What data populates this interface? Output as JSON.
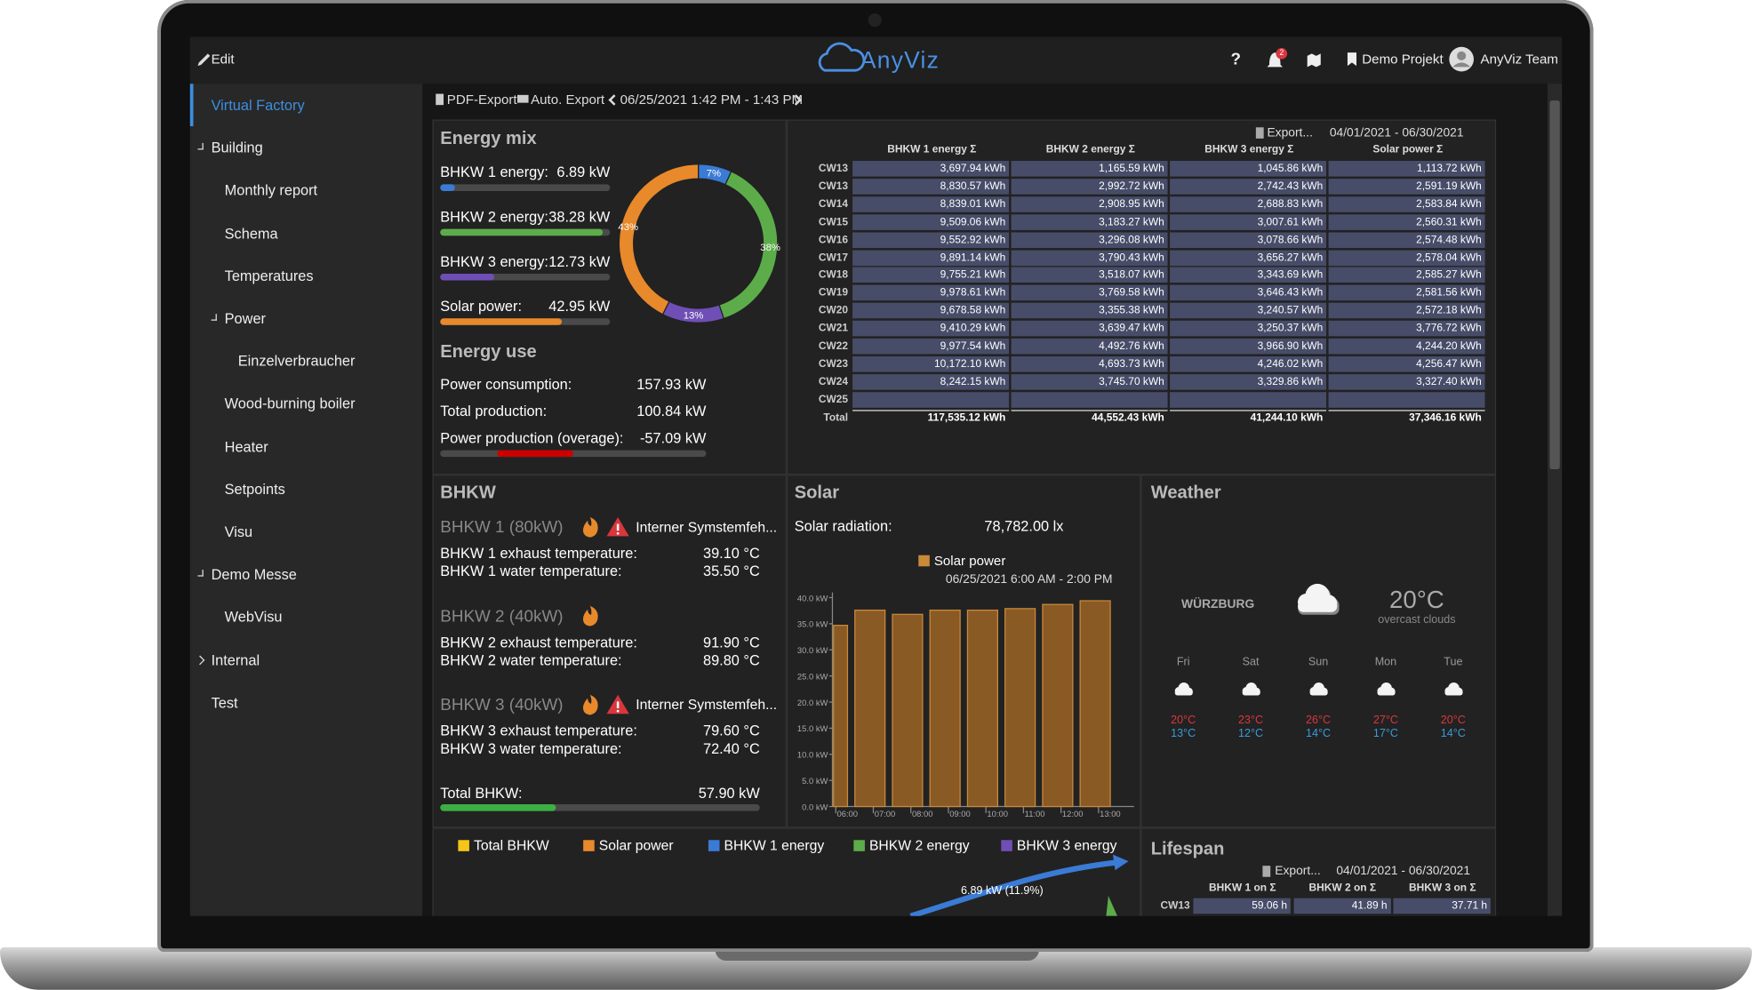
{
  "header": {
    "edit": "Edit",
    "logo": "AnyViz",
    "help": "?",
    "notification_count": "2",
    "project": "Demo Projekt",
    "user": "AnyViz Team"
  },
  "sidebar": {
    "items": [
      "Virtual Factory",
      "Building",
      "Monthly report",
      "Schema",
      "Temperatures",
      "Power",
      "Einzelverbraucher",
      "Wood-burning boiler",
      "Heater",
      "Setpoints",
      "Visu",
      "Demo Messe",
      "WebVisu",
      "Internal",
      "Test"
    ]
  },
  "toolbar": {
    "pdf_export": "PDF-Export",
    "auto_export": "Auto. Export",
    "time_range": "06/25/2021 1:42 PM - 1:43 PM"
  },
  "energy_mix": {
    "title": "Energy mix",
    "items": [
      {
        "label": "BHKW 1 energy:",
        "value": 6.89,
        "value_label": "6.89 kW",
        "range": [
          0,
          80
        ],
        "color": "#3a7bd5",
        "share_label": "7%"
      },
      {
        "label": "BHKW 2 energy:",
        "value": 38.28,
        "value_label": "38.28 kW",
        "range": [
          0,
          40
        ],
        "color": "#5cad4a",
        "share_label": "38%"
      },
      {
        "label": "BHKW 3 energy:",
        "value": 12.73,
        "value_label": "12.73 kW",
        "range": [
          0,
          40
        ],
        "color": "#6f4fb5",
        "share_label": "13%"
      },
      {
        "label": "Solar power:",
        "value": 42.95,
        "value_label": "42.95 kW",
        "range": [
          0,
          60
        ],
        "color": "#e8892b",
        "share_label": "43%"
      }
    ]
  },
  "energy_use": {
    "title": "Energy use",
    "rows": [
      {
        "label": "Power consumption:",
        "value": "157.93 kW"
      },
      {
        "label": "Total production:",
        "value": "100.84 kW"
      }
    ],
    "overage": {
      "label": "Power production (overage):",
      "value": -57.09,
      "value_label": "-57.09 kW",
      "range": [
        -100,
        100
      ],
      "color": "#cc0000"
    }
  },
  "energy_table": {
    "export": "Export...",
    "period": "04/01/2021 - 06/30/2021",
    "columns": [
      "BHKW 1 energy Σ",
      "BHKW 2 energy Σ",
      "BHKW 3 energy Σ",
      "Solar power Σ"
    ],
    "rows": [
      [
        "CW13",
        "3,697.94 kWh",
        "1,165.59 kWh",
        "1,045.86 kWh",
        "1,113.72 kWh"
      ],
      [
        "CW13",
        "8,830.57 kWh",
        "2,992.72 kWh",
        "2,742.43 kWh",
        "2,591.19 kWh"
      ],
      [
        "CW14",
        "8,839.01 kWh",
        "2,908.95 kWh",
        "2,688.83 kWh",
        "2,583.84 kWh"
      ],
      [
        "CW15",
        "9,509.06 kWh",
        "3,183.27 kWh",
        "3,007.61 kWh",
        "2,560.31 kWh"
      ],
      [
        "CW16",
        "9,552.92 kWh",
        "3,296.08 kWh",
        "3,078.66 kWh",
        "2,574.48 kWh"
      ],
      [
        "CW17",
        "9,891.14 kWh",
        "3,790.43 kWh",
        "3,656.27 kWh",
        "2,578.04 kWh"
      ],
      [
        "CW18",
        "9,755.21 kWh",
        "3,518.07 kWh",
        "3,343.69 kWh",
        "2,585.27 kWh"
      ],
      [
        "CW19",
        "9,978.61 kWh",
        "3,769.58 kWh",
        "3,646.43 kWh",
        "2,581.56 kWh"
      ],
      [
        "CW20",
        "9,678.58 kWh",
        "3,355.38 kWh",
        "3,240.57 kWh",
        "2,572.18 kWh"
      ],
      [
        "CW21",
        "9,410.29 kWh",
        "3,639.47 kWh",
        "3,250.37 kWh",
        "3,776.72 kWh"
      ],
      [
        "CW22",
        "9,977.54 kWh",
        "4,492.76 kWh",
        "3,966.90 kWh",
        "4,244.20 kWh"
      ],
      [
        "CW23",
        "10,172.10 kWh",
        "4,693.73 kWh",
        "4,246.02 kWh",
        "4,256.47 kWh"
      ],
      [
        "CW24",
        "8,242.15 kWh",
        "3,745.70 kWh",
        "3,329.86 kWh",
        "3,327.40 kWh"
      ],
      [
        "CW25",
        null,
        null,
        null,
        null
      ]
    ],
    "total": [
      "Total",
      "117,535.12 kWh",
      "44,552.43 kWh",
      "41,244.10 kWh",
      "37,346.16 kWh"
    ]
  },
  "bhkw": {
    "title": "BHKW",
    "units": [
      {
        "name": "BHKW 1 (80kW)",
        "status": "Interner Symstemfeh...",
        "readings": [
          {
            "label": "BHKW 1 exhaust temperature:",
            "value": "39.10 °C"
          },
          {
            "label": "BHKW 1 water temperature:",
            "value": "35.50 °C"
          }
        ]
      },
      {
        "name": "BHKW 2 (40kW)",
        "readings": [
          {
            "label": "BHKW 2 exhaust temperature:",
            "value": "91.90 °C"
          },
          {
            "label": "BHKW 2 water temperature:",
            "value": "89.80 °C"
          }
        ]
      },
      {
        "name": "BHKW 3 (40kW)",
        "status": "Interner Symstemfeh...",
        "readings": [
          {
            "label": "BHKW 3 exhaust temperature:",
            "value": "79.60 °C"
          },
          {
            "label": "BHKW 3 water temperature:",
            "value": "72.40 °C"
          }
        ]
      }
    ],
    "total": {
      "label": "Total BHKW:",
      "value": 57.9,
      "value_label": "57.90 kW",
      "range": [
        0,
        160
      ],
      "color": "#3cb043"
    }
  },
  "solar": {
    "title": "Solar",
    "radiation": {
      "label": "Solar radiation:",
      "value": "78,782.00 lx"
    },
    "chart_data": {
      "type": "bar",
      "subtitle": "06/25/2021 6:00 AM - 2:00 PM",
      "categories": [
        "06:00",
        "07:00",
        "08:00",
        "09:00",
        "10:00",
        "11:00",
        "12:00",
        "13:00"
      ],
      "series": [
        {
          "name": "Solar power",
          "color": "#c98a3a",
          "values": [
            34.7,
            37.6,
            36.8,
            37.6,
            37.6,
            37.9,
            38.7,
            39.4
          ]
        }
      ],
      "ylim": [
        0,
        41
      ],
      "yticks": [
        {
          "value": 0,
          "label": "0.0 kW"
        },
        {
          "value": 5,
          "label": "5.0 kW"
        },
        {
          "value": 10,
          "label": "10.0 kW"
        },
        {
          "value": 15,
          "label": "15.0 kW"
        },
        {
          "value": 20,
          "label": "20.0 kW"
        },
        {
          "value": 25,
          "label": "25.0 kW"
        },
        {
          "value": 30,
          "label": "30.0 kW"
        },
        {
          "value": 35,
          "label": "35.0 kW"
        },
        {
          "value": 40,
          "label": "40.0 kW"
        }
      ]
    }
  },
  "weather": {
    "title": "Weather",
    "city": "WÜRZBURG",
    "temperature": "20°C",
    "condition": "overcast clouds",
    "forecast": [
      {
        "day": "Fri",
        "high": "20°C",
        "low": "13°C"
      },
      {
        "day": "Sat",
        "high": "23°C",
        "low": "12°C"
      },
      {
        "day": "Sun",
        "high": "26°C",
        "low": "14°C"
      },
      {
        "day": "Mon",
        "high": "27°C",
        "low": "17°C"
      },
      {
        "day": "Tue",
        "high": "20°C",
        "low": "14°C"
      }
    ]
  },
  "flow": {
    "legend": [
      {
        "name": "Total BHKW",
        "color": "#f5c518"
      },
      {
        "name": "Solar power",
        "color": "#e8892b"
      },
      {
        "name": "BHKW 1 energy",
        "color": "#3a7bd5"
      },
      {
        "name": "BHKW 2 energy",
        "color": "#5cad4a"
      },
      {
        "name": "BHKW 3 energy",
        "color": "#6f4fb5"
      }
    ],
    "link_label": "6.89 kW (11.9%)"
  },
  "lifespan": {
    "title": "Lifespan",
    "export": "Export...",
    "period": "04/01/2021 - 06/30/2021",
    "columns": [
      "BHKW 1 on Σ",
      "BHKW 2 on Σ",
      "BHKW 3 on Σ"
    ],
    "rows": [
      [
        "CW13",
        "59.06 h",
        "41.89 h",
        "37.71 h"
      ]
    ]
  }
}
